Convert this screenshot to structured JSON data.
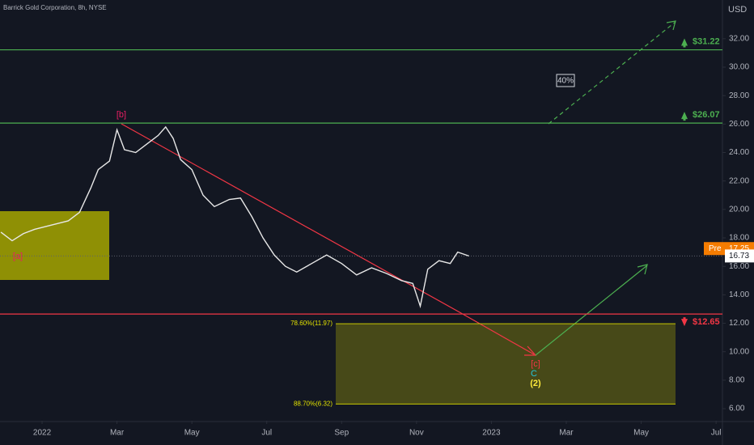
{
  "chart_data": {
    "type": "line",
    "title": "Barrick Gold Corporation, 8h, NYSE",
    "currency": "USD",
    "xlim": [
      -1.124,
      18.17
    ],
    "xticks": [
      {
        "value": 0,
        "label": "2022"
      },
      {
        "value": 2,
        "label": "Mar"
      },
      {
        "value": 4,
        "label": "May"
      },
      {
        "value": 6,
        "label": "Jul"
      },
      {
        "value": 8,
        "label": "Sep"
      },
      {
        "value": 10,
        "label": "Nov"
      },
      {
        "value": 12,
        "label": "2023"
      },
      {
        "value": 14,
        "label": "Mar"
      },
      {
        "value": 16,
        "label": "May"
      },
      {
        "value": 18,
        "label": "Jul"
      }
    ],
    "ylim": [
      5.15,
      34.72
    ],
    "yticks": [
      {
        "value": 6,
        "label": "6.00"
      },
      {
        "value": 8,
        "label": "8.00"
      },
      {
        "value": 10,
        "label": "10.00"
      },
      {
        "value": 12,
        "label": "12.00"
      },
      {
        "value": 14,
        "label": "14.00"
      },
      {
        "value": 16,
        "label": "16.00"
      },
      {
        "value": 18,
        "label": "18.00"
      },
      {
        "value": 20,
        "label": "20.00"
      },
      {
        "value": 22,
        "label": "22.00"
      },
      {
        "value": 24,
        "label": "24.00"
      },
      {
        "value": 26,
        "label": "26.00"
      },
      {
        "value": 28,
        "label": "28.00"
      },
      {
        "value": 30,
        "label": "30.00"
      },
      {
        "value": 32,
        "label": "32.00"
      }
    ],
    "series": [
      {
        "color": "#e8e8e8",
        "x": [
          -1.1,
          -0.8,
          -0.5,
          -0.2,
          0.1,
          0.4,
          0.7,
          1.0,
          1.3,
          1.5,
          1.8,
          2.0,
          2.2,
          2.5,
          2.8,
          3.1,
          3.3,
          3.5,
          3.7,
          4.0,
          4.3,
          4.6,
          5.0,
          5.3,
          5.6,
          5.9,
          6.2,
          6.5,
          6.8,
          7.2,
          7.6,
          8.0,
          8.4,
          8.8,
          9.2,
          9.6,
          9.9,
          10.1,
          10.3,
          10.6,
          10.9,
          11.1,
          11.4
        ],
        "values": [
          18.4,
          17.8,
          18.3,
          18.6,
          18.8,
          19.0,
          19.2,
          19.8,
          21.5,
          22.8,
          23.4,
          25.6,
          24.2,
          24.0,
          24.6,
          25.2,
          25.8,
          25.0,
          23.5,
          22.8,
          21.0,
          20.2,
          20.7,
          20.8,
          19.5,
          18.0,
          16.8,
          16.0,
          15.6,
          16.2,
          16.8,
          16.2,
          15.4,
          15.9,
          15.5,
          15.0,
          14.8,
          13.2,
          15.8,
          16.4,
          16.2,
          17.0,
          16.73
        ]
      }
    ],
    "levels": [
      {
        "value": 31.22,
        "label": "$31.22",
        "color": "#4caf50",
        "direction": "up"
      },
      {
        "value": 26.07,
        "label": "$26.07",
        "color": "#4caf50",
        "direction": "up"
      },
      {
        "value": 12.65,
        "label": "$12.65",
        "color": "#f23645",
        "direction": "down"
      }
    ],
    "fib_levels": [
      {
        "value": 11.97,
        "label": "78.60%(11.97)"
      },
      {
        "value": 6.32,
        "label": "88.70%(6.32)"
      }
    ],
    "last_price": {
      "value": 16.73,
      "label": "16.73"
    },
    "pre_price": {
      "tag": "Pre",
      "value": 17.25,
      "label": "17.25"
    },
    "annotations": {
      "a": "[a]",
      "b": "[b]",
      "c": "[c]",
      "C": "C",
      "wave2": "(2)",
      "probability": "40%"
    }
  }
}
